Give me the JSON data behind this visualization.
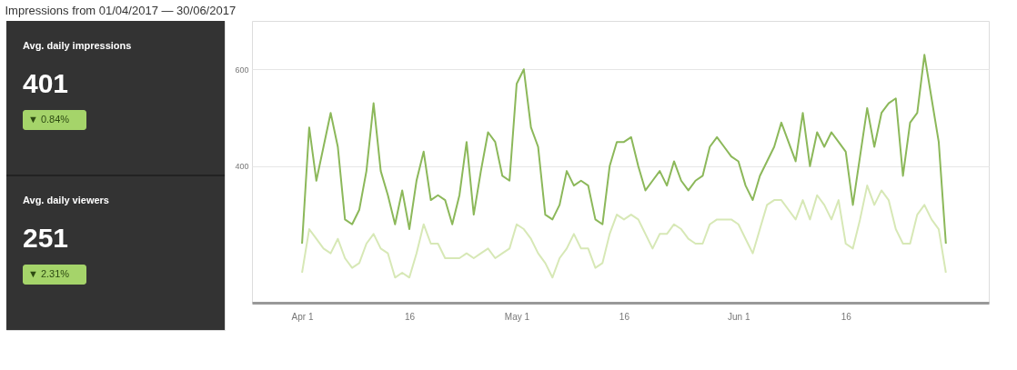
{
  "chart_data": {
    "type": "line",
    "title": "Impressions from 01/04/2017 — 30/06/2017",
    "x": [
      "2017-04-01",
      "2017-04-02",
      "2017-04-03",
      "2017-04-04",
      "2017-04-05",
      "2017-04-06",
      "2017-04-07",
      "2017-04-08",
      "2017-04-09",
      "2017-04-10",
      "2017-04-11",
      "2017-04-12",
      "2017-04-13",
      "2017-04-14",
      "2017-04-15",
      "2017-04-16",
      "2017-04-17",
      "2017-04-18",
      "2017-04-19",
      "2017-04-20",
      "2017-04-21",
      "2017-04-22",
      "2017-04-23",
      "2017-04-24",
      "2017-04-25",
      "2017-04-26",
      "2017-04-27",
      "2017-04-28",
      "2017-04-29",
      "2017-04-30",
      "2017-05-01",
      "2017-05-02",
      "2017-05-03",
      "2017-05-04",
      "2017-05-05",
      "2017-05-06",
      "2017-05-07",
      "2017-05-08",
      "2017-05-09",
      "2017-05-10",
      "2017-05-11",
      "2017-05-12",
      "2017-05-13",
      "2017-05-14",
      "2017-05-15",
      "2017-05-16",
      "2017-05-17",
      "2017-05-18",
      "2017-05-19",
      "2017-05-20",
      "2017-05-21",
      "2017-05-22",
      "2017-05-23",
      "2017-05-24",
      "2017-05-25",
      "2017-05-26",
      "2017-05-27",
      "2017-05-28",
      "2017-05-29",
      "2017-05-30",
      "2017-05-31",
      "2017-06-01",
      "2017-06-02",
      "2017-06-03",
      "2017-06-04",
      "2017-06-05",
      "2017-06-06",
      "2017-06-07",
      "2017-06-08",
      "2017-06-09",
      "2017-06-10",
      "2017-06-11",
      "2017-06-12",
      "2017-06-13",
      "2017-06-14",
      "2017-06-15",
      "2017-06-16",
      "2017-06-17",
      "2017-06-18",
      "2017-06-19",
      "2017-06-20",
      "2017-06-21",
      "2017-06-22",
      "2017-06-23",
      "2017-06-24",
      "2017-06-25",
      "2017-06-26",
      "2017-06-27",
      "2017-06-28",
      "2017-06-29",
      "2017-06-30"
    ],
    "series": [
      {
        "color": "#8cb85a",
        "values": [
          240,
          480,
          370,
          440,
          510,
          440,
          290,
          280,
          310,
          390,
          530,
          390,
          340,
          280,
          350,
          270,
          370,
          430,
          330,
          340,
          330,
          280,
          340,
          450,
          300,
          390,
          470,
          450,
          380,
          370,
          570,
          600,
          480,
          440,
          300,
          290,
          320,
          390,
          360,
          370,
          360,
          290,
          280,
          400,
          450,
          450,
          460,
          400,
          350,
          370,
          390,
          360,
          410,
          370,
          350,
          370,
          380,
          440,
          460,
          440,
          420,
          410,
          360,
          330,
          380,
          410,
          440,
          490,
          450,
          410,
          510,
          400,
          470,
          440,
          470,
          450,
          430,
          320,
          420,
          520,
          440,
          510,
          530,
          540,
          380,
          490,
          510,
          630,
          540,
          450,
          240
        ]
      },
      {
        "color": "#d7e8b6",
        "values": [
          180,
          270,
          250,
          230,
          220,
          250,
          210,
          190,
          200,
          240,
          260,
          230,
          220,
          170,
          180,
          170,
          220,
          280,
          240,
          240,
          210,
          210,
          210,
          220,
          210,
          220,
          230,
          210,
          220,
          230,
          280,
          270,
          250,
          220,
          200,
          170,
          210,
          230,
          260,
          230,
          230,
          190,
          200,
          260,
          300,
          290,
          300,
          290,
          260,
          230,
          260,
          260,
          280,
          270,
          250,
          240,
          240,
          280,
          290,
          290,
          290,
          280,
          250,
          220,
          270,
          320,
          330,
          330,
          310,
          290,
          330,
          290,
          340,
          320,
          290,
          330,
          240,
          230,
          290,
          360,
          320,
          350,
          330,
          270,
          240,
          240,
          300,
          320,
          290,
          270,
          180
        ]
      }
    ],
    "xlim": [
      "2017-03-25",
      "2017-07-06"
    ],
    "xticks": [
      {
        "value": "2017-04-01",
        "label": "Apr 1"
      },
      {
        "value": "2017-04-16",
        "label": "16"
      },
      {
        "value": "2017-05-01",
        "label": "May 1"
      },
      {
        "value": "2017-05-16",
        "label": "16"
      },
      {
        "value": "2017-06-01",
        "label": "Jun 1"
      },
      {
        "value": "2017-06-16",
        "label": "16"
      }
    ],
    "ylim": [
      118,
      700
    ],
    "yticks": [
      400,
      600
    ],
    "grid": "y",
    "legend": false,
    "annotations": [
      "Avg. daily impressions",
      "401",
      "▼ 0.84%",
      "Avg. daily viewers",
      "251",
      "▼ 2.31%"
    ]
  }
}
